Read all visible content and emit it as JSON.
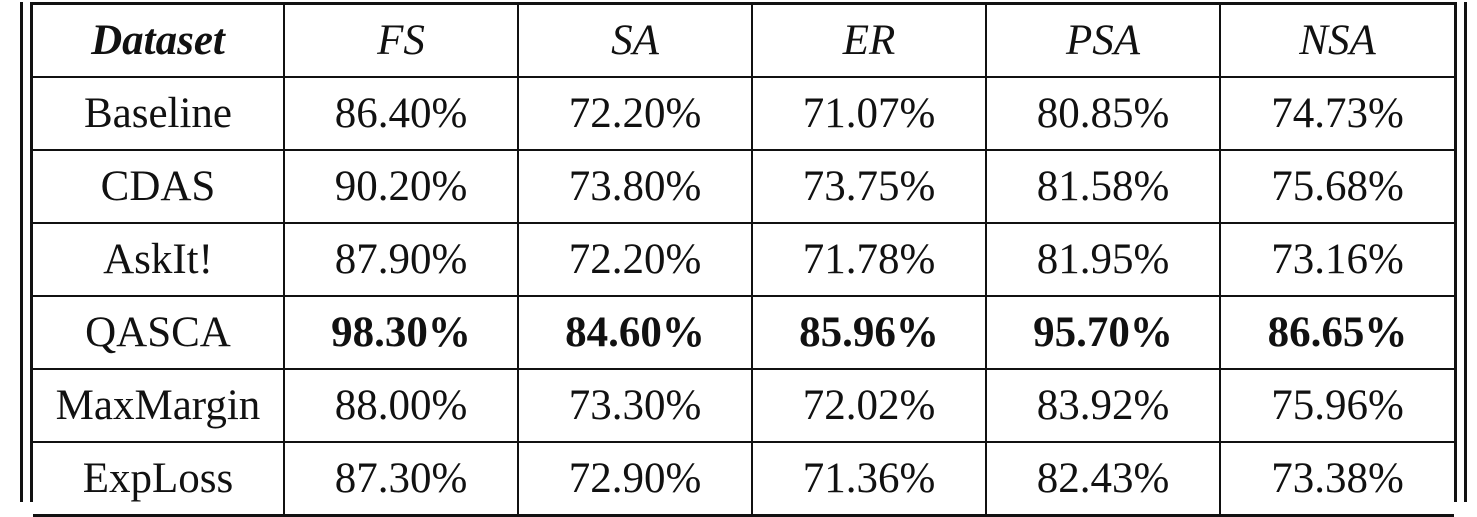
{
  "table": {
    "headers": [
      "Dataset",
      "FS",
      "SA",
      "ER",
      "PSA",
      "NSA"
    ],
    "rows": [
      {
        "name": "Baseline",
        "values": [
          "86.40%",
          "72.20%",
          "71.07%",
          "80.85%",
          "74.73%"
        ],
        "bold": false
      },
      {
        "name": "CDAS",
        "values": [
          "90.20%",
          "73.80%",
          "73.75%",
          "81.58%",
          "75.68%"
        ],
        "bold": false
      },
      {
        "name": "AskIt!",
        "values": [
          "87.90%",
          "72.20%",
          "71.78%",
          "81.95%",
          "73.16%"
        ],
        "bold": false
      },
      {
        "name": "QASCA",
        "values": [
          "98.30%",
          "84.60%",
          "85.96%",
          "95.70%",
          "86.65%"
        ],
        "bold": true
      },
      {
        "name": "MaxMargin",
        "values": [
          "88.00%",
          "73.30%",
          "72.02%",
          "83.92%",
          "75.96%"
        ],
        "bold": false
      },
      {
        "name": "ExpLoss",
        "values": [
          "87.30%",
          "72.90%",
          "71.36%",
          "82.43%",
          "73.38%"
        ],
        "bold": false
      }
    ]
  }
}
